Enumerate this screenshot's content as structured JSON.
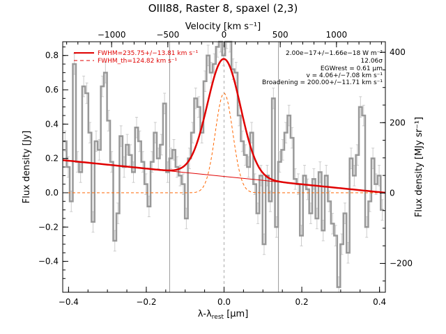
{
  "chart_data": {
    "type": "line",
    "title": "OIII88, Raster 8, spaxel (2,3)",
    "xlabel": "λ-λrest [µm]",
    "xlabel_main": "λ-λ",
    "xlabel_sub": "rest",
    "xlabel_unit": " [µm]",
    "ylabel": "Flux density [Jy]",
    "x2label": "Velocity [km s⁻¹]",
    "y2label": "Flux density [MJy sr⁻¹]",
    "xlim": [
      -0.415,
      0.415
    ],
    "ylim": [
      -0.58,
      0.88
    ],
    "x2lim": [
      -1435,
      1435
    ],
    "y2lim": [
      -282,
      430
    ],
    "xticks": [
      -0.4,
      -0.2,
      0.0,
      0.2,
      0.4
    ],
    "xticklabels": [
      "−0.4",
      "−0.2",
      "0.0",
      "0.2",
      "0.4"
    ],
    "yticks": [
      -0.4,
      -0.2,
      0.0,
      0.2,
      0.4,
      0.6,
      0.8
    ],
    "yticklabels": [
      "−0.4",
      "−0.2",
      "0.0",
      "0.2",
      "0.4",
      "0.6",
      "0.8"
    ],
    "x2ticks": [
      -1000,
      -500,
      0,
      500,
      1000
    ],
    "x2ticklabels": [
      "−1000",
      "−500",
      "0",
      "500",
      "1000"
    ],
    "y2ticks": [
      -200,
      0,
      200,
      400
    ],
    "y2ticklabels": [
      "−200",
      "0",
      "200",
      "400"
    ],
    "vlines_gray": [
      -0.14,
      0.14
    ],
    "vline_dashed": [
      0.0
    ],
    "legend": [
      {
        "label": "FWHM=235.75+/−13.81 km s⁻¹",
        "color": "#e00000",
        "style": "solid"
      },
      {
        "label": "FWHM_th=124.82 km s⁻¹",
        "color": "#e00000",
        "style": "dashed"
      }
    ],
    "legend_position": "top-left",
    "annotations": [
      "2.00e−17+/−1.66e−18 W m⁻²",
      "12.06σ",
      "EGWrest = 0.61 µm",
      "v = 4.06+/−7.08 km s⁻¹",
      "Broadening = 200.00+/−11.71 km s⁻¹"
    ],
    "annotation_position": "top-right",
    "continuum": {
      "x": [
        -0.415,
        0.415
      ],
      "y": [
        0.19,
        0.0
      ]
    },
    "fit": {
      "center": 0.0,
      "sigma": 0.0425,
      "amplitude": 0.685,
      "color": "#e00000"
    },
    "fit_thermal": {
      "center": 0.0,
      "sigma": 0.0225,
      "amplitude": 0.58,
      "color": "#ff6600"
    },
    "series": [
      {
        "name": "data",
        "color": "#999999",
        "error_color": "#cccccc",
        "error": 0.06,
        "x": [
          -0.409,
          -0.401,
          -0.393,
          -0.385,
          -0.377,
          -0.369,
          -0.361,
          -0.353,
          -0.345,
          -0.337,
          -0.329,
          -0.321,
          -0.313,
          -0.305,
          -0.297,
          -0.289,
          -0.281,
          -0.273,
          -0.265,
          -0.257,
          -0.249,
          -0.241,
          -0.233,
          -0.225,
          -0.217,
          -0.209,
          -0.201,
          -0.193,
          -0.185,
          -0.177,
          -0.169,
          -0.161,
          -0.153,
          -0.145,
          -0.137,
          -0.129,
          -0.121,
          -0.113,
          -0.105,
          -0.097,
          -0.089,
          -0.081,
          -0.073,
          -0.065,
          -0.057,
          -0.049,
          -0.041,
          -0.033,
          -0.025,
          -0.017,
          -0.009,
          -0.001,
          0.007,
          0.015,
          0.023,
          0.031,
          0.039,
          0.047,
          0.055,
          0.063,
          0.071,
          0.079,
          0.087,
          0.095,
          0.103,
          0.111,
          0.119,
          0.127,
          0.135,
          0.143,
          0.151,
          0.159,
          0.167,
          0.175,
          0.183,
          0.191,
          0.199,
          0.207,
          0.215,
          0.223,
          0.231,
          0.239,
          0.247,
          0.255,
          0.263,
          0.271,
          0.279,
          0.287,
          0.295,
          0.303,
          0.311,
          0.319,
          0.327,
          0.335,
          0.343,
          0.351,
          0.359,
          0.367,
          0.375,
          0.383,
          0.391,
          0.399,
          0.407
        ],
        "y": [
          0.3,
          0.15,
          -0.05,
          0.75,
          0.18,
          0.12,
          0.62,
          0.58,
          0.35,
          -0.17,
          0.3,
          0.25,
          0.62,
          0.7,
          0.42,
          0.18,
          -0.28,
          -0.12,
          0.33,
          0.15,
          0.28,
          0.22,
          0.12,
          0.38,
          0.3,
          0.18,
          0.05,
          -0.08,
          0.18,
          0.35,
          0.2,
          0.28,
          0.52,
          0.12,
          0.2,
          0.25,
          0.15,
          0.1,
          0.05,
          -0.15,
          0.2,
          0.35,
          0.55,
          0.5,
          0.35,
          0.65,
          0.8,
          0.7,
          0.75,
          0.85,
          0.88,
          0.8,
          0.9,
          0.88,
          0.72,
          0.7,
          0.45,
          0.3,
          0.22,
          0.15,
          0.35,
          0.05,
          -0.12,
          0.1,
          -0.3,
          0.1,
          -0.05,
          0.55,
          -0.2,
          0.18,
          0.25,
          0.35,
          0.45,
          0.32,
          0.08,
          0.05,
          -0.25,
          0.1,
          0.02,
          -0.12,
          0.08,
          -0.15,
          0.12,
          -0.22,
          0.1,
          -0.05,
          -0.18,
          -0.25,
          -0.55,
          -0.3,
          -0.12,
          -0.35,
          0.2,
          0.1,
          0.22,
          0.5,
          0.45,
          -0.2,
          -0.05,
          0.2,
          0.05,
          0.1,
          -0.1
        ]
      }
    ]
  }
}
